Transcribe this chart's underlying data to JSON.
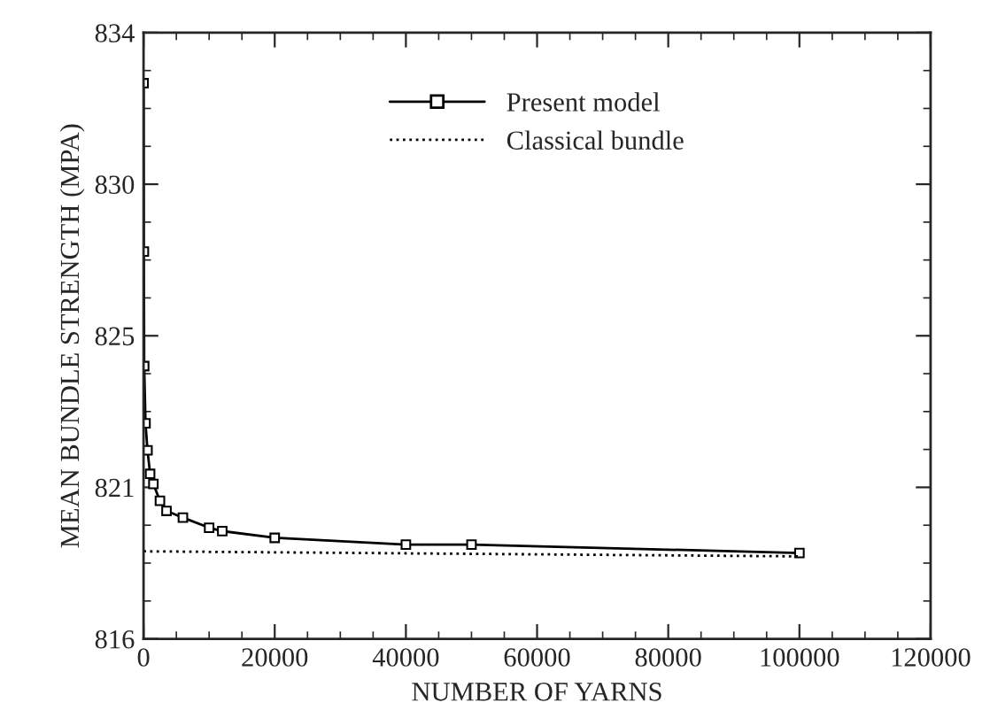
{
  "chart_data": {
    "type": "line",
    "xlabel": "NUMBER OF YARNS",
    "ylabel": "MEAN BUNDLE STRENGTH (MPA)",
    "series": [
      {
        "name": "Present model",
        "color": "#000000",
        "marker": "square",
        "line_style": "solid",
        "x": [
          10,
          50,
          100,
          300,
          600,
          1000,
          1500,
          2500,
          3500,
          6000,
          10000,
          12000,
          20000,
          40000,
          50000,
          100000
        ],
        "values": [
          832.5,
          827.5,
          824.1,
          822.4,
          821.6,
          820.9,
          820.6,
          820.1,
          819.8,
          819.6,
          819.3,
          819.2,
          819.0,
          818.8,
          818.8,
          818.55
        ]
      },
      {
        "name": "Classical bundle",
        "color": "#000000",
        "marker": "none",
        "line_style": "dotted",
        "x": [
          0,
          100000
        ],
        "values": [
          818.6,
          818.45
        ]
      }
    ],
    "xlim": [
      0,
      120000
    ],
    "xticks": [
      0,
      20000,
      40000,
      60000,
      80000,
      100000,
      120000
    ],
    "ylim": [
      816,
      834
    ],
    "yticks": [
      {
        "value": 816,
        "label": "816"
      },
      {
        "value": 820.5,
        "label": "821"
      },
      {
        "value": 825,
        "label": "825"
      },
      {
        "value": 829.5,
        "label": "830"
      },
      {
        "value": 834,
        "label": "834"
      }
    ],
    "grid": false,
    "legend": "top"
  }
}
